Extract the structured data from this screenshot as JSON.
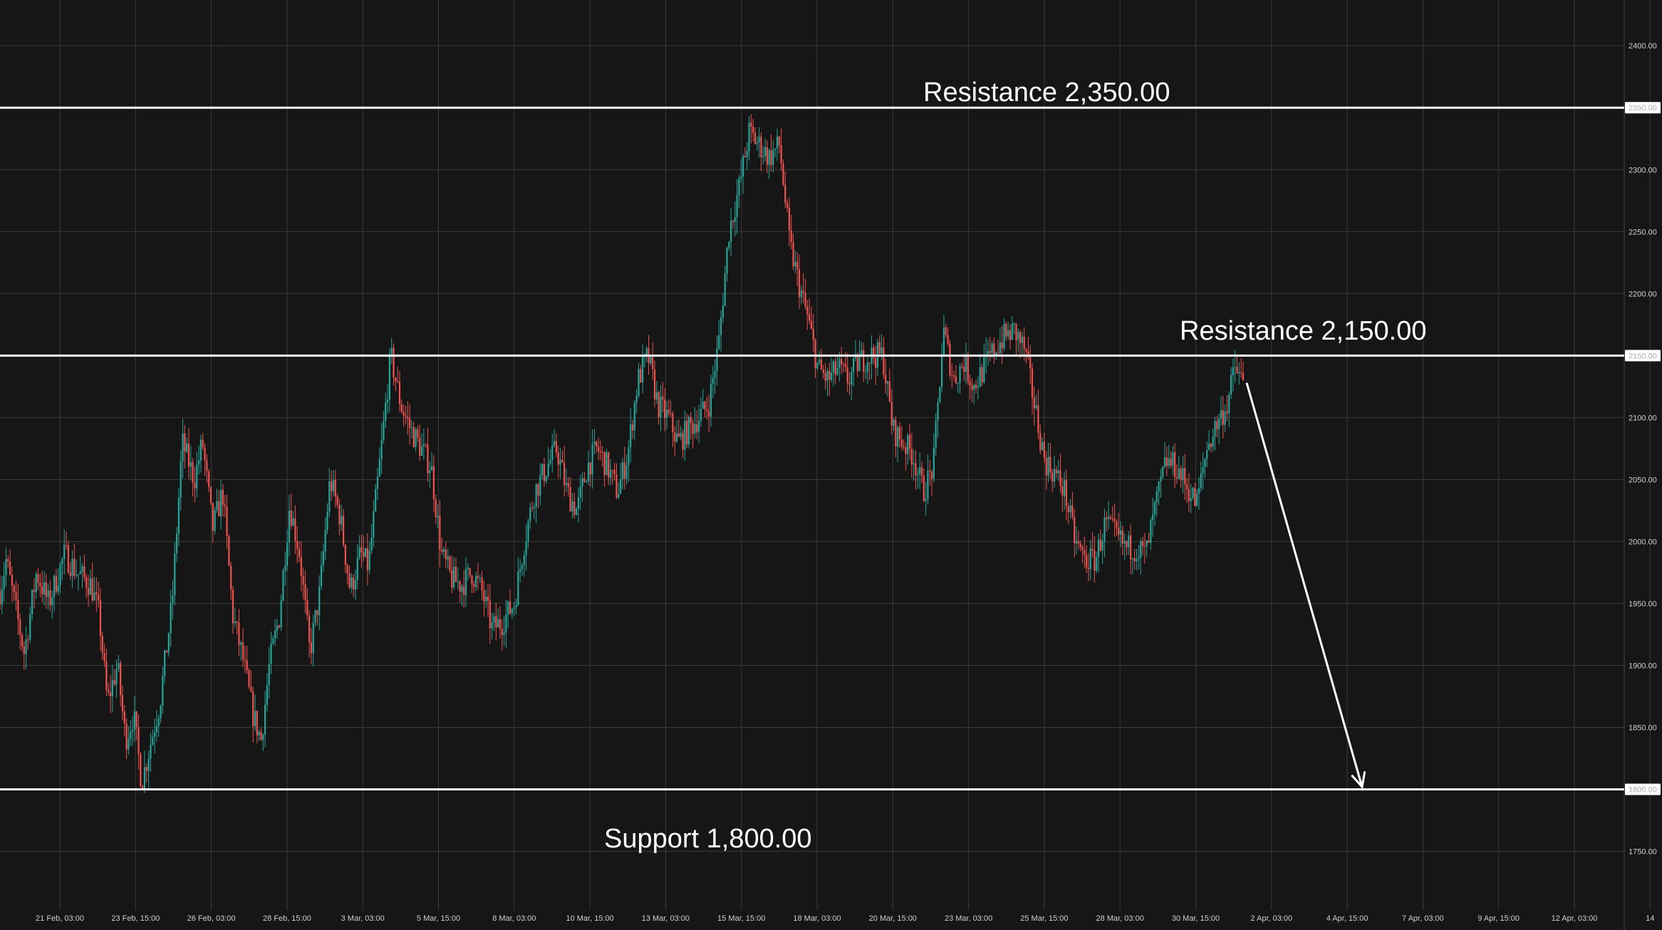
{
  "chart_data": {
    "type": "candlestick",
    "title": "",
    "xlabel": "",
    "ylabel": "",
    "ylim": [
      1710,
      2440
    ],
    "colors": {
      "background": "#161616",
      "grid": "#3a3a3a",
      "up": "#26a69a",
      "down": "#ef5350",
      "level": "#ffffff"
    },
    "grid": true,
    "y_ticks": [
      "2400.00",
      "2350.00",
      "2300.00",
      "2250.00",
      "2200.00",
      "2150.00",
      "2100.00",
      "2050.00",
      "2000.00",
      "1950.00",
      "1900.00",
      "1850.00",
      "1800.00",
      "1750.00"
    ],
    "x_ticks": [
      "21 Feb, 03:00",
      "23 Feb, 15:00",
      "26 Feb, 03:00",
      "28 Feb, 15:00",
      "3 Mar, 03:00",
      "5 Mar, 15:00",
      "8 Mar, 03:00",
      "10 Mar, 15:00",
      "13 Mar, 03:00",
      "15 Mar, 15:00",
      "18 Mar, 03:00",
      "20 Mar, 15:00",
      "23 Mar, 03:00",
      "25 Mar, 15:00",
      "28 Mar, 03:00",
      "30 Mar, 15:00",
      "2 Apr, 03:00",
      "4 Apr, 15:00",
      "7 Apr, 03:00",
      "9 Apr, 15:00",
      "12 Apr, 03:00",
      "14"
    ],
    "levels": [
      {
        "value": 2350,
        "axis_label": "2350.00",
        "annotation": "Resistance 2,350.00"
      },
      {
        "value": 2150,
        "axis_label": "2150.00",
        "annotation": "Resistance 2,150.00"
      },
      {
        "value": 1800,
        "axis_label": "1800.00",
        "annotation": "Support 1,800.00"
      }
    ],
    "forecast_arrow": {
      "from": 2128,
      "to": 1802
    },
    "price_path": [
      [
        0,
        1960
      ],
      [
        0.3,
        1985
      ],
      [
        1.2,
        1910
      ],
      [
        1.8,
        1975
      ],
      [
        2.4,
        1950
      ],
      [
        3.2,
        1990
      ],
      [
        3.8,
        1975
      ],
      [
        4.5,
        1965
      ],
      [
        4.9,
        1940
      ],
      [
        5.3,
        1870
      ],
      [
        5.8,
        1900
      ],
      [
        6.2,
        1840
      ],
      [
        6.6,
        1860
      ],
      [
        7.0,
        1805
      ],
      [
        7.4,
        1835
      ],
      [
        7.9,
        1870
      ],
      [
        8.5,
        1950
      ],
      [
        9.0,
        2080
      ],
      [
        9.6,
        2050
      ],
      [
        10.0,
        2080
      ],
      [
        10.5,
        2010
      ],
      [
        11.0,
        2040
      ],
      [
        11.5,
        1940
      ],
      [
        12.0,
        1905
      ],
      [
        12.5,
        1860
      ],
      [
        12.9,
        1840
      ],
      [
        13.3,
        1900
      ],
      [
        13.8,
        1940
      ],
      [
        14.3,
        2030
      ],
      [
        14.8,
        1990
      ],
      [
        15.3,
        1910
      ],
      [
        15.8,
        1960
      ],
      [
        16.3,
        2050
      ],
      [
        16.8,
        2020
      ],
      [
        17.3,
        1960
      ],
      [
        17.8,
        1990
      ],
      [
        18.2,
        1980
      ],
      [
        18.8,
        2070
      ],
      [
        19.3,
        2150
      ],
      [
        19.8,
        2110
      ],
      [
        20.3,
        2090
      ],
      [
        20.8,
        2075
      ],
      [
        21.3,
        2060
      ],
      [
        21.8,
        1990
      ],
      [
        22.3,
        1970
      ],
      [
        22.8,
        1965
      ],
      [
        23.3,
        1975
      ],
      [
        23.8,
        1960
      ],
      [
        24.3,
        1930
      ],
      [
        24.8,
        1935
      ],
      [
        25.4,
        1950
      ],
      [
        25.9,
        2000
      ],
      [
        26.4,
        2040
      ],
      [
        27.0,
        2060
      ],
      [
        27.5,
        2075
      ],
      [
        28.0,
        2040
      ],
      [
        28.5,
        2025
      ],
      [
        29.0,
        2060
      ],
      [
        29.5,
        2075
      ],
      [
        30.0,
        2060
      ],
      [
        30.5,
        2040
      ],
      [
        31.0,
        2070
      ],
      [
        31.5,
        2130
      ],
      [
        32.0,
        2150
      ],
      [
        32.5,
        2110
      ],
      [
        33.0,
        2100
      ],
      [
        33.5,
        2080
      ],
      [
        34.0,
        2090
      ],
      [
        34.5,
        2100
      ],
      [
        35.0,
        2110
      ],
      [
        35.5,
        2160
      ],
      [
        36.0,
        2250
      ],
      [
        36.5,
        2285
      ],
      [
        37.0,
        2330
      ],
      [
        37.5,
        2320
      ],
      [
        38.0,
        2310
      ],
      [
        38.5,
        2320
      ],
      [
        39.0,
        2240
      ],
      [
        39.5,
        2205
      ],
      [
        39.9,
        2180
      ],
      [
        40.4,
        2140
      ],
      [
        40.9,
        2130
      ],
      [
        41.4,
        2140
      ],
      [
        41.9,
        2130
      ],
      [
        42.4,
        2145
      ],
      [
        43.0,
        2150
      ],
      [
        43.6,
        2150
      ],
      [
        44.1,
        2090
      ],
      [
        44.6,
        2080
      ],
      [
        45.1,
        2070
      ],
      [
        45.6,
        2040
      ],
      [
        46.1,
        2060
      ],
      [
        46.6,
        2170
      ],
      [
        47.1,
        2130
      ],
      [
        47.6,
        2145
      ],
      [
        48.1,
        2125
      ],
      [
        48.6,
        2140
      ],
      [
        49.1,
        2155
      ],
      [
        49.6,
        2165
      ],
      [
        50.1,
        2170
      ],
      [
        50.6,
        2155
      ],
      [
        51.1,
        2110
      ],
      [
        51.6,
        2065
      ],
      [
        52.1,
        2055
      ],
      [
        52.6,
        2040
      ],
      [
        53.1,
        2000
      ],
      [
        53.6,
        1985
      ],
      [
        54.1,
        1985
      ],
      [
        54.6,
        2015
      ],
      [
        55.1,
        2005
      ],
      [
        55.6,
        1995
      ],
      [
        56.1,
        1995
      ],
      [
        56.6,
        1990
      ],
      [
        57.1,
        2030
      ],
      [
        57.6,
        2065
      ],
      [
        58.1,
        2060
      ],
      [
        58.6,
        2045
      ],
      [
        59.1,
        2030
      ],
      [
        59.6,
        2075
      ],
      [
        60.1,
        2095
      ],
      [
        60.6,
        2110
      ],
      [
        61.0,
        2140
      ],
      [
        61.4,
        2128
      ]
    ]
  },
  "annotations": {
    "resistance_upper": "Resistance 2,350.00",
    "resistance_lower": "Resistance 2,150.00",
    "support": "Support 1,800.00"
  }
}
